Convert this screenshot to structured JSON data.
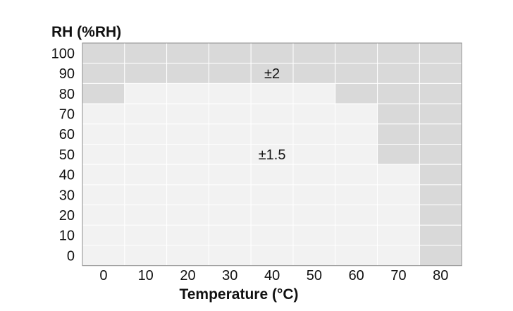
{
  "chart_data": {
    "type": "heatmap",
    "title": "",
    "xlabel": "Temperature (°C)",
    "ylabel": "RH (%RH)",
    "x": [
      0,
      10,
      20,
      30,
      40,
      50,
      60,
      70,
      80
    ],
    "y": [
      0,
      10,
      20,
      30,
      40,
      50,
      60,
      70,
      80,
      90,
      100
    ],
    "cell_unit": "±%RH",
    "rows_top_to_bottom": [
      {
        "rh": 100,
        "cells": [
          2,
          2,
          2,
          2,
          2,
          2,
          2,
          2,
          2
        ]
      },
      {
        "rh": 90,
        "cells": [
          2,
          2,
          2,
          2,
          2,
          2,
          2,
          2,
          2
        ]
      },
      {
        "rh": 80,
        "cells": [
          2,
          1.5,
          1.5,
          1.5,
          1.5,
          1.5,
          2,
          2,
          2
        ]
      },
      {
        "rh": 70,
        "cells": [
          1.5,
          1.5,
          1.5,
          1.5,
          1.5,
          1.5,
          1.5,
          2,
          2
        ]
      },
      {
        "rh": 60,
        "cells": [
          1.5,
          1.5,
          1.5,
          1.5,
          1.5,
          1.5,
          1.5,
          2,
          2
        ]
      },
      {
        "rh": 50,
        "cells": [
          1.5,
          1.5,
          1.5,
          1.5,
          1.5,
          1.5,
          1.5,
          2,
          2
        ]
      },
      {
        "rh": 40,
        "cells": [
          1.5,
          1.5,
          1.5,
          1.5,
          1.5,
          1.5,
          1.5,
          1.5,
          2
        ]
      },
      {
        "rh": 30,
        "cells": [
          1.5,
          1.5,
          1.5,
          1.5,
          1.5,
          1.5,
          1.5,
          1.5,
          2
        ]
      },
      {
        "rh": 20,
        "cells": [
          1.5,
          1.5,
          1.5,
          1.5,
          1.5,
          1.5,
          1.5,
          1.5,
          2
        ]
      },
      {
        "rh": 10,
        "cells": [
          1.5,
          1.5,
          1.5,
          1.5,
          1.5,
          1.5,
          1.5,
          1.5,
          2
        ]
      },
      {
        "rh": 0,
        "cells": [
          1.5,
          1.5,
          1.5,
          1.5,
          1.5,
          1.5,
          1.5,
          1.5,
          2
        ]
      }
    ],
    "regions": [
      {
        "value": 2,
        "label": "±2",
        "color": "#d9d9d9",
        "label_at": {
          "temp": 40,
          "rh": 90
        }
      },
      {
        "value": 1.5,
        "label": "±1.5",
        "color": "#f2f2f2",
        "label_at": {
          "temp": 40,
          "rh": 50
        }
      }
    ],
    "grid": true,
    "legend": "none"
  }
}
